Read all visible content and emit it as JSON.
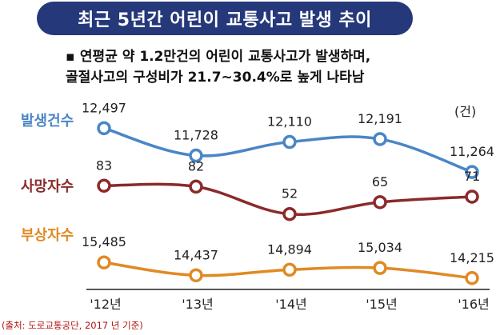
{
  "header": {
    "title": "최근 5년간 어린이 교통사고 발생 추이"
  },
  "summary": {
    "bullet": "▪",
    "line1": "연평균 약 1.2만건의 어린이 교통사고가 발생하며,",
    "line2": "골절사고의 구성비가 21.7~30.4%로 높게 나타남"
  },
  "unit_label": "(건)",
  "source_note": "(출처: 도로교통공단, 2017 년 기준)",
  "colors": {
    "banner": "#25387a",
    "occurrences": "#4a86c5",
    "deaths": "#8b2a2a",
    "injuries": "#e08a24",
    "source": "#b01515"
  },
  "chart_data": {
    "type": "line",
    "categories": [
      "'12년",
      "'13년",
      "'14년",
      "'15년",
      "'16년"
    ],
    "series": [
      {
        "name": "발생건수",
        "values": [
          12497,
          11728,
          12110,
          12191,
          11264
        ],
        "labels": [
          "12,497",
          "11,728",
          "12,110",
          "12,191",
          "11,264"
        ]
      },
      {
        "name": "사망자수",
        "values": [
          83,
          82,
          52,
          65,
          71
        ],
        "labels": [
          "83",
          "82",
          "52",
          "65",
          "71"
        ]
      },
      {
        "name": "부상자수",
        "values": [
          15485,
          14437,
          14894,
          15034,
          14215
        ],
        "labels": [
          "15,485",
          "14,437",
          "14,894",
          "15,034",
          "14,215"
        ]
      }
    ],
    "title": "최근 5년간 어린이 교통사고 발생 추이",
    "xlabel": "",
    "ylabel": "",
    "unit": "(건)",
    "grid": false,
    "legend": "left"
  }
}
